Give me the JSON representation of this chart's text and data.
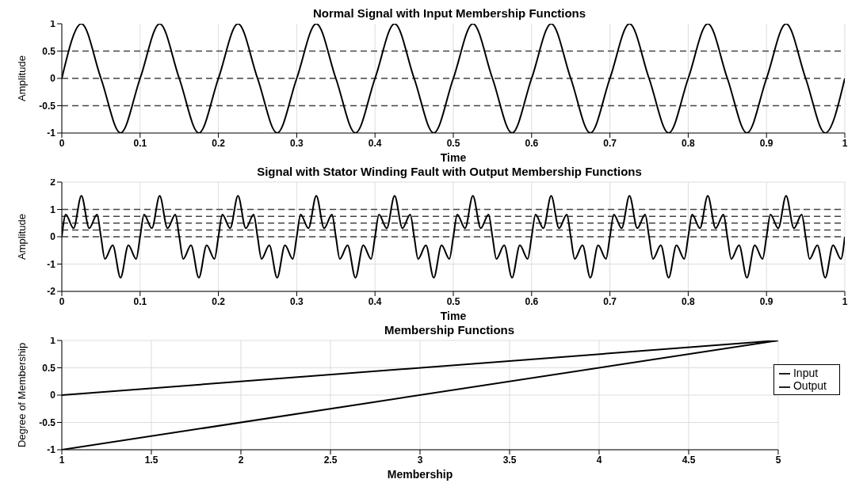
{
  "chart_data": [
    {
      "type": "line",
      "title": "Normal Signal with Input Membership Functions",
      "xlabel": "Time",
      "ylabel": "Amplitude",
      "xlim": [
        0,
        1
      ],
      "xticks": [
        0,
        0.1,
        0.2,
        0.3,
        0.4,
        0.5,
        0.6,
        0.7,
        0.8,
        0.9,
        1
      ],
      "ylim": [
        -1,
        1
      ],
      "yticks": [
        -1,
        -0.5,
        0,
        0.5,
        1
      ],
      "grid": "x",
      "marker": "none",
      "line_style": "solid",
      "legend": false,
      "ref_lines": [
        {
          "axis": "y",
          "value": 0.5,
          "line_style": "dashed",
          "color": "#444444"
        },
        {
          "axis": "y",
          "value": 0,
          "line_style": "dashed",
          "color": "#444444"
        },
        {
          "axis": "y",
          "value": -0.5,
          "line_style": "dashed",
          "color": "#444444"
        }
      ],
      "series": [
        {
          "color": "#000000",
          "x": [
            0,
            0.025,
            0.05,
            0.075,
            0.1,
            0.125,
            0.15,
            0.175,
            0.2,
            0.225,
            0.25,
            0.275,
            0.3,
            0.325,
            0.35,
            0.375,
            0.4,
            0.425,
            0.45,
            0.475,
            0.5,
            0.525,
            0.55,
            0.575,
            0.6,
            0.625,
            0.65,
            0.675,
            0.7,
            0.725,
            0.75,
            0.775,
            0.8,
            0.825,
            0.85,
            0.875,
            0.9,
            0.925,
            0.95,
            0.975,
            1
          ],
          "values": [
            0,
            1,
            0,
            -1,
            0,
            1,
            0,
            -1,
            0,
            1,
            0,
            -1,
            0,
            1,
            0,
            -1,
            0,
            1,
            0,
            -1,
            0,
            1,
            0,
            -1,
            0,
            1,
            0,
            -1,
            0,
            1,
            0,
            -1,
            0,
            1,
            0,
            -1,
            0,
            1,
            0,
            -1,
            0
          ]
        }
      ]
    },
    {
      "type": "line",
      "title": "Signal with Stator Winding Fault with Output Membership Functions",
      "xlabel": "Time",
      "ylabel": "Amplitude",
      "xlim": [
        0,
        1
      ],
      "xticks": [
        0,
        0.1,
        0.2,
        0.3,
        0.4,
        0.5,
        0.6,
        0.7,
        0.8,
        0.9,
        1
      ],
      "ylim": [
        -2,
        2
      ],
      "yticks": [
        -2,
        -1,
        0,
        1,
        2
      ],
      "grid": true,
      "marker": "none",
      "line_style": "solid",
      "legend": false,
      "ref_lines": [
        {
          "axis": "y",
          "value": 1,
          "line_style": "dashed",
          "color": "#444444"
        },
        {
          "axis": "y",
          "value": 0.75,
          "line_style": "dashed",
          "color": "#444444"
        },
        {
          "axis": "y",
          "value": 0.5,
          "line_style": "dashed",
          "color": "#444444"
        },
        {
          "axis": "y",
          "value": 0.25,
          "line_style": "dashed",
          "color": "#444444"
        },
        {
          "axis": "y",
          "value": 0,
          "line_style": "dashed",
          "color": "#444444"
        }
      ],
      "series": [
        {
          "color": "#000000",
          "x": [
            0,
            0.005,
            0.015,
            0.025,
            0.035,
            0.045,
            0.05,
            0.055,
            0.065,
            0.075,
            0.085,
            0.095,
            0.1,
            0.105,
            0.115,
            0.125,
            0.135,
            0.145,
            0.15,
            0.155,
            0.165,
            0.175,
            0.185,
            0.195,
            0.2,
            0.205,
            0.215,
            0.225,
            0.235,
            0.245,
            0.25,
            0.255,
            0.265,
            0.275,
            0.285,
            0.295,
            0.3,
            0.305,
            0.315,
            0.325,
            0.335,
            0.345,
            0.35,
            0.355,
            0.365,
            0.375,
            0.385,
            0.395,
            0.4,
            0.405,
            0.415,
            0.425,
            0.435,
            0.445,
            0.45,
            0.455,
            0.465,
            0.475,
            0.485,
            0.495,
            0.5,
            0.505,
            0.515,
            0.525,
            0.535,
            0.545,
            0.55,
            0.555,
            0.565,
            0.575,
            0.585,
            0.595,
            0.6,
            0.605,
            0.615,
            0.625,
            0.635,
            0.645,
            0.65,
            0.655,
            0.665,
            0.675,
            0.685,
            0.695,
            0.7,
            0.705,
            0.715,
            0.725,
            0.735,
            0.745,
            0.75,
            0.755,
            0.765,
            0.775,
            0.785,
            0.795,
            0.8,
            0.805,
            0.815,
            0.825,
            0.835,
            0.845,
            0.85,
            0.855,
            0.865,
            0.875,
            0.885,
            0.895,
            0.9,
            0.905,
            0.915,
            0.925,
            0.935,
            0.945,
            0.95,
            0.955,
            0.965,
            0.975,
            0.985,
            0.995,
            1
          ],
          "values": [
            0,
            0.81,
            0.31,
            1.5,
            0.31,
            0.81,
            0,
            -0.81,
            -0.31,
            -1.5,
            -0.31,
            -0.81,
            0,
            0.81,
            0.31,
            1.5,
            0.31,
            0.81,
            0,
            -0.81,
            -0.31,
            -1.5,
            -0.31,
            -0.81,
            0,
            0.81,
            0.31,
            1.5,
            0.31,
            0.81,
            0,
            -0.81,
            -0.31,
            -1.5,
            -0.31,
            -0.81,
            0,
            0.81,
            0.31,
            1.5,
            0.31,
            0.81,
            0,
            -0.81,
            -0.31,
            -1.5,
            -0.31,
            -0.81,
            0,
            0.81,
            0.31,
            1.5,
            0.31,
            0.81,
            0,
            -0.81,
            -0.31,
            -1.5,
            -0.31,
            -0.81,
            0,
            0.81,
            0.31,
            1.5,
            0.31,
            0.81,
            0,
            -0.81,
            -0.31,
            -1.5,
            -0.31,
            -0.81,
            0,
            0.81,
            0.31,
            1.5,
            0.31,
            0.81,
            0,
            -0.81,
            -0.31,
            -1.5,
            -0.31,
            -0.81,
            0,
            0.81,
            0.31,
            1.5,
            0.31,
            0.81,
            0,
            -0.81,
            -0.31,
            -1.5,
            -0.31,
            -0.81,
            0,
            0.81,
            0.31,
            1.5,
            0.31,
            0.81,
            0,
            -0.81,
            -0.31,
            -1.5,
            -0.31,
            -0.81,
            0,
            0.81,
            0.31,
            1.5,
            0.31,
            0.81,
            0,
            -0.81,
            -0.31,
            -1.5,
            -0.31,
            -0.81,
            0
          ]
        }
      ]
    },
    {
      "type": "line",
      "title": "Membership Functions",
      "xlabel": "Membership",
      "ylabel": "Degree of Membership",
      "xlim": [
        1,
        5
      ],
      "xticks": [
        1,
        1.5,
        2,
        2.5,
        3,
        3.5,
        4,
        4.5,
        5
      ],
      "ylim": [
        -1,
        1
      ],
      "yticks": [
        -1,
        -0.5,
        0,
        0.5,
        1
      ],
      "grid": true,
      "marker": "none",
      "line_style": "solid",
      "legend": "top right",
      "series": [
        {
          "name": "Input",
          "color": "#000000",
          "x": [
            1,
            5
          ],
          "values": [
            0,
            1
          ]
        },
        {
          "name": "Output",
          "color": "#000000",
          "x": [
            1,
            5
          ],
          "values": [
            -1,
            1
          ]
        }
      ]
    }
  ]
}
